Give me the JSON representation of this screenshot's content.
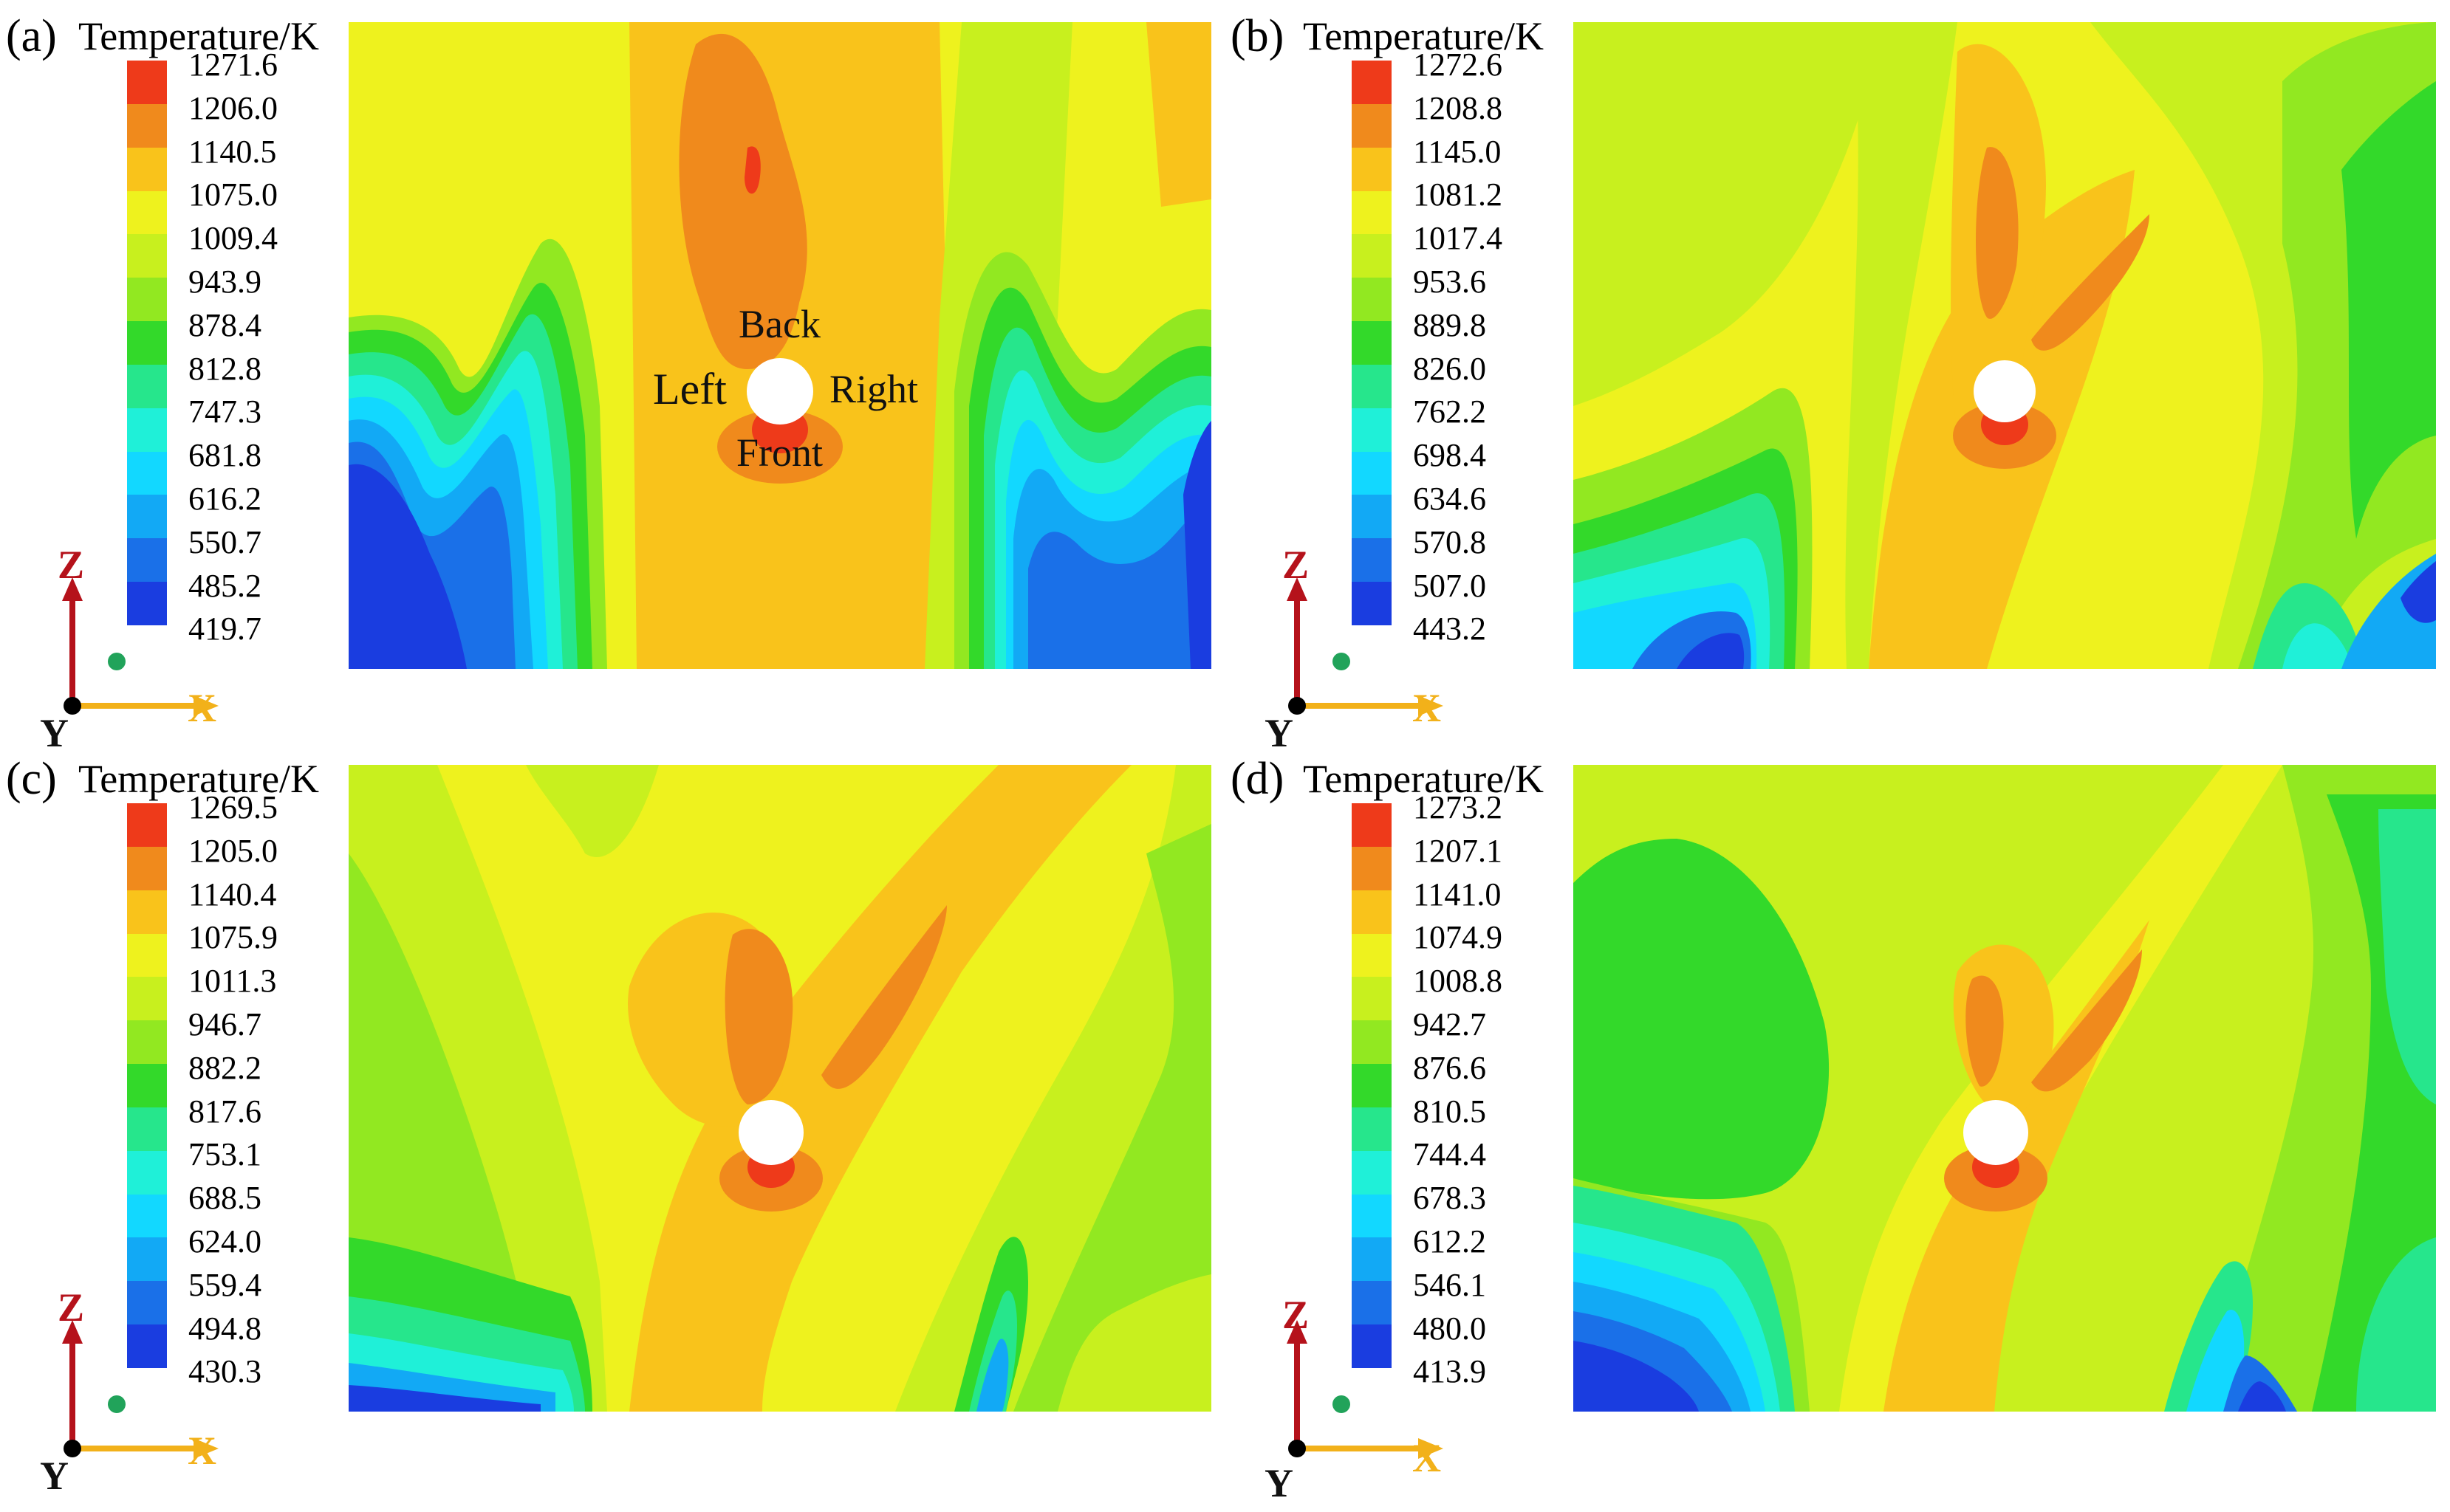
{
  "panels": [
    {
      "label": "(a)",
      "colorbar_title": "Temperature/K",
      "ticks": [
        "1271.6",
        "1206.0",
        "1140.5",
        "1075.0",
        "1009.4",
        "943.9",
        "878.4",
        "812.8",
        "747.3",
        "681.8",
        "616.2",
        "550.7",
        "485.2",
        "419.7"
      ],
      "annotations": {
        "back": "Back",
        "left": "Left",
        "right": "Right",
        "front": "Front"
      }
    },
    {
      "label": "(b)",
      "colorbar_title": "Temperature/K",
      "ticks": [
        "1272.6",
        "1208.8",
        "1145.0",
        "1081.2",
        "1017.4",
        "953.6",
        "889.8",
        "826.0",
        "762.2",
        "698.4",
        "634.6",
        "570.8",
        "507.0",
        "443.2"
      ]
    },
    {
      "label": "(c)",
      "colorbar_title": "Temperature/K",
      "ticks": [
        "1269.5",
        "1205.0",
        "1140.4",
        "1075.9",
        "1011.3",
        "946.7",
        "882.2",
        "817.6",
        "753.1",
        "688.5",
        "624.0",
        "559.4",
        "494.8",
        "430.3"
      ]
    },
    {
      "label": "(d)",
      "colorbar_title": "Temperature/K",
      "ticks": [
        "1273.2",
        "1207.1",
        "1141.0",
        "1074.9",
        "1008.8",
        "942.7",
        "876.6",
        "810.5",
        "744.4",
        "678.3",
        "612.2",
        "546.1",
        "480.0",
        "413.9"
      ]
    }
  ],
  "axes": {
    "z": "Z",
    "x": "X",
    "y": "Y"
  },
  "colors": {
    "levels": [
      "#ee3a1a",
      "#f08a1c",
      "#f9c31b",
      "#eef21e",
      "#c8f01e",
      "#92e821",
      "#33d92a",
      "#26e68c",
      "#1ff0d8",
      "#12d8ff",
      "#12a9f5",
      "#1a70e8",
      "#1a3de0"
    ],
    "axis_z": "#b5121b",
    "axis_x": "#f2b11a",
    "origin_dot": "#21a35a"
  }
}
